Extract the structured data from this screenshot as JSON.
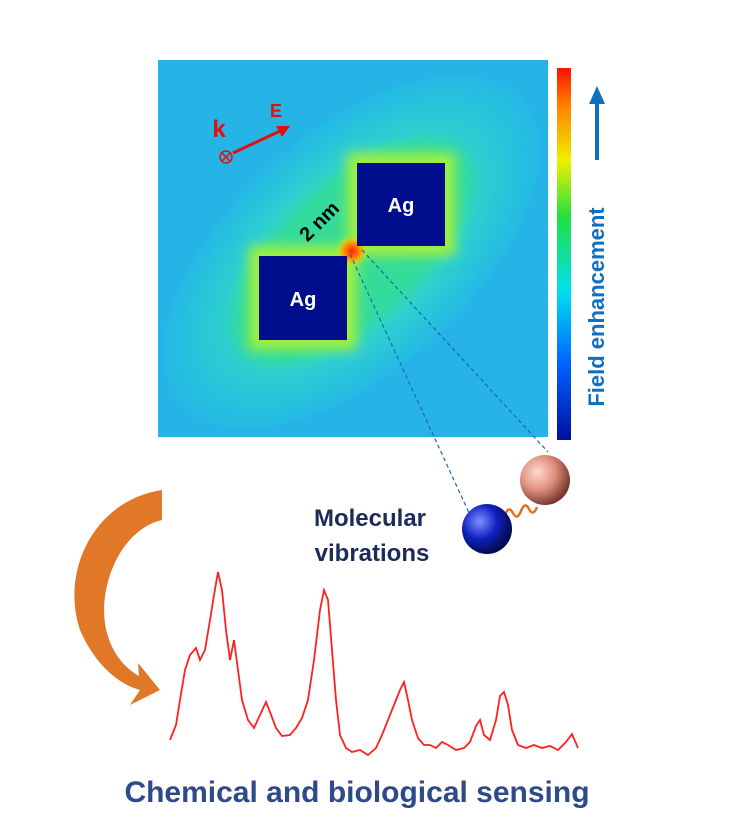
{
  "field_map": {
    "wave_vector": "k",
    "polarization": "E",
    "gap_label": "2 nm",
    "particles": [
      "Ag",
      "Ag"
    ],
    "colorbar_label": "Field enhancement"
  },
  "molecule": {
    "label_lines": [
      "Molecular",
      "vibrations"
    ]
  },
  "caption": "Chemical and biological sensing"
}
